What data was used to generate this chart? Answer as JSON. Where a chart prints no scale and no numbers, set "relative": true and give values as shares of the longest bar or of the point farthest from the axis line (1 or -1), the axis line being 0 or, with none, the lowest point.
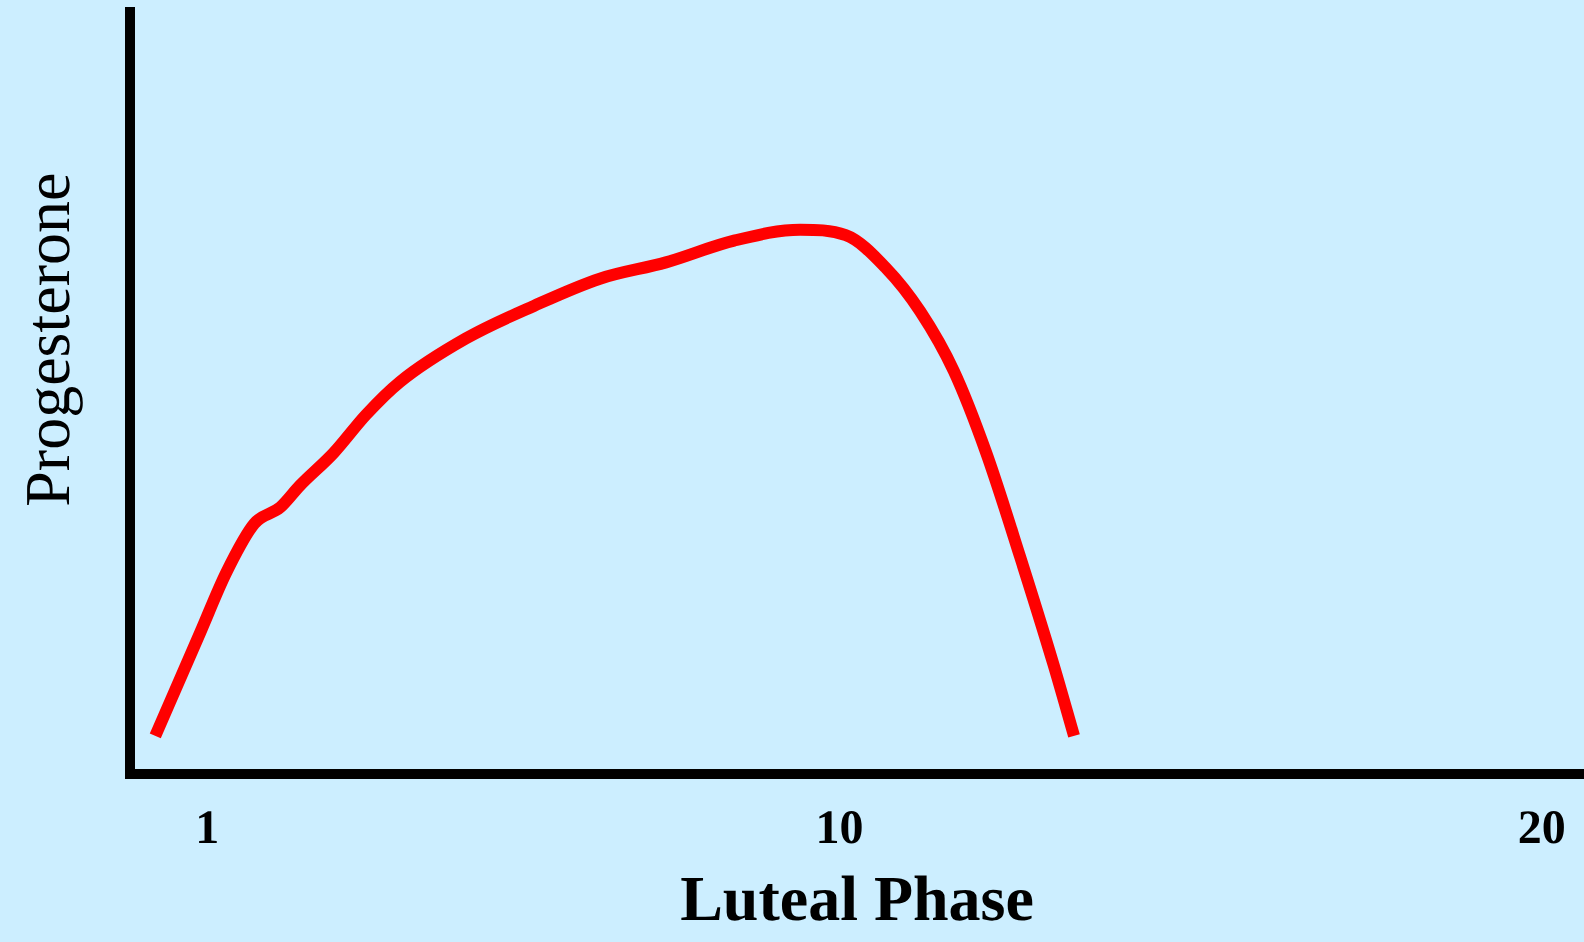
{
  "chart_data": {
    "type": "line",
    "xlabel": "Luteal Phase",
    "ylabel": "Progesterone",
    "relative": true,
    "x": [
      0.26,
      0.9,
      1.27,
      1.67,
      2.04,
      2.32,
      2.8,
      3.26,
      3.74,
      4.68,
      5.65,
      6.59,
      7.53,
      8.5,
      9.44,
      10.09,
      10.66,
      11.15,
      11.63,
      12.09,
      12.57,
      13.05,
      13.34
    ],
    "series": [
      {
        "color": "#ff0000",
        "values": [
          0.07,
          0.26,
          0.37,
          0.46,
          0.49,
          0.53,
          0.59,
          0.66,
          0.72,
          0.8,
          0.86,
          0.91,
          0.94,
          0.98,
          1,
          0.99,
          0.93,
          0.85,
          0.74,
          0.59,
          0.4,
          0.2,
          0.07
        ]
      }
    ],
    "xlim": [
      -0.1,
      20.6
    ],
    "xticks": [
      1,
      10,
      20
    ],
    "tick_labels": "x",
    "grid": false,
    "legend": false,
    "marker": "none",
    "line_style": "solid"
  }
}
